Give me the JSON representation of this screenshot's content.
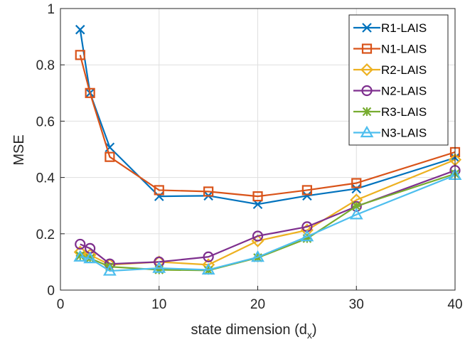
{
  "chart_data": {
    "type": "line",
    "title": "",
    "xlabel": "state dimension (d",
    "xlabel_sub": "x",
    "xlabel_close": ")",
    "ylabel": "MSE",
    "xlim": [
      0,
      40
    ],
    "ylim": [
      0,
      1
    ],
    "xticks": [
      0,
      10,
      20,
      30,
      40
    ],
    "yticks": [
      0,
      0.2,
      0.4,
      0.6,
      0.8,
      1
    ],
    "xtick_labels": [
      "0",
      "10",
      "20",
      "30",
      "40"
    ],
    "ytick_labels": [
      "0",
      "0.2",
      "0.4",
      "0.6",
      "0.8",
      "1"
    ],
    "grid": true,
    "legend_position": "top-right",
    "x": [
      2,
      3,
      5,
      10,
      15,
      20,
      25,
      30,
      40
    ],
    "series": [
      {
        "name": "R1-LAIS",
        "color": "#0072BD",
        "marker": "x",
        "values": [
          0.925,
          0.7,
          0.507,
          0.333,
          0.335,
          0.305,
          0.335,
          0.36,
          0.47
        ]
      },
      {
        "name": "N1-LAIS",
        "color": "#D95319",
        "marker": "square",
        "values": [
          0.835,
          0.7,
          0.473,
          0.355,
          0.35,
          0.333,
          0.355,
          0.38,
          0.49
        ]
      },
      {
        "name": "R2-LAIS",
        "color": "#EDB120",
        "marker": "diamond",
        "values": [
          0.135,
          0.125,
          0.09,
          0.1,
          0.09,
          0.175,
          0.213,
          0.32,
          0.463
        ]
      },
      {
        "name": "N2-LAIS",
        "color": "#7E2F8E",
        "marker": "circle",
        "values": [
          0.163,
          0.148,
          0.093,
          0.1,
          0.118,
          0.192,
          0.225,
          0.297,
          0.425
        ]
      },
      {
        "name": "R3-LAIS",
        "color": "#77AC30",
        "marker": "asterisk",
        "values": [
          0.122,
          0.113,
          0.083,
          0.072,
          0.07,
          0.115,
          0.183,
          0.298,
          0.413
        ]
      },
      {
        "name": "N3-LAIS",
        "color": "#4DBEEE",
        "marker": "triangle",
        "values": [
          0.118,
          0.112,
          0.068,
          0.078,
          0.072,
          0.117,
          0.19,
          0.268,
          0.408
        ]
      }
    ]
  }
}
